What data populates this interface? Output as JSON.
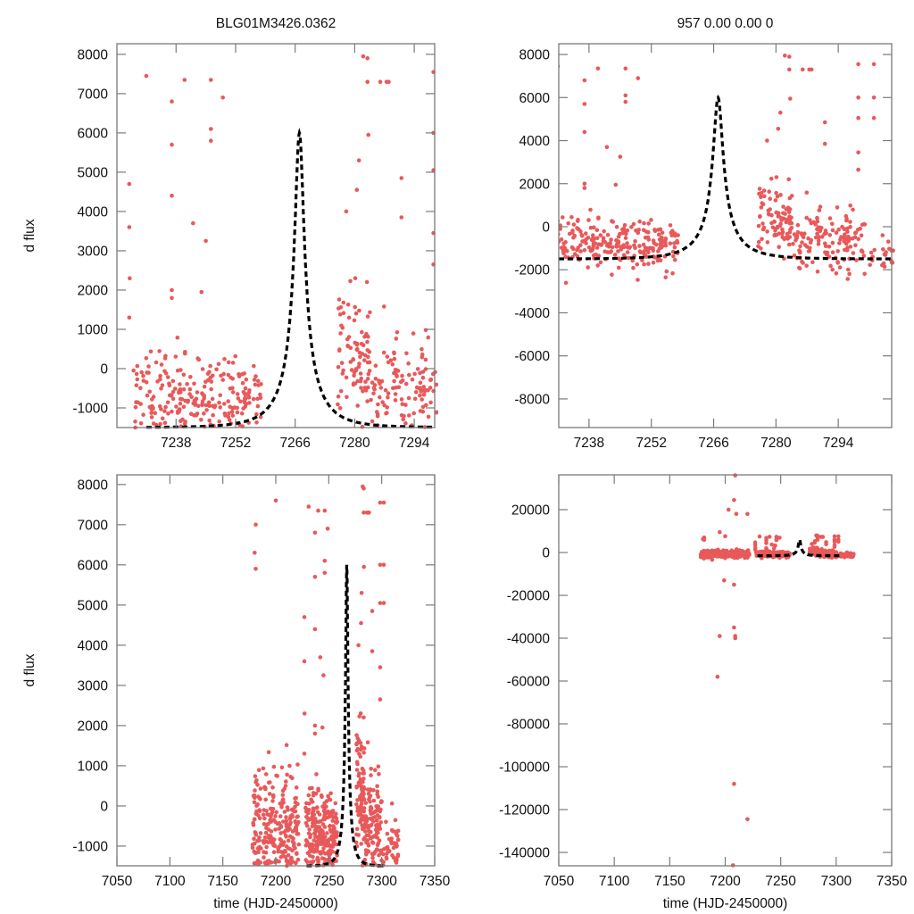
{
  "figure": {
    "colors": {
      "points": "#e8595a",
      "model": "#000000",
      "frame": "#7a7a7a"
    }
  },
  "chart_data": [
    {
      "id": "top-left",
      "type": "scatter",
      "title": "BLG01M3426.0362",
      "xlabel": "",
      "ylabel": "d flux",
      "xlim": [
        7224.1,
        7298.8
      ],
      "ylim": [
        -1500,
        8270
      ],
      "xticks": [
        7238,
        7252,
        7266,
        7280,
        7294
      ],
      "yticks": [
        -1000,
        0,
        1000,
        2000,
        3000,
        4000,
        5000,
        6000,
        7000,
        8000
      ],
      "grid": false,
      "series": [
        {
          "name": "observations",
          "style": "points"
        },
        {
          "name": "model",
          "style": "dashed-line"
        }
      ]
    },
    {
      "id": "top-right",
      "type": "scatter",
      "title": "957  0.00  0.00  0",
      "xlabel": "",
      "ylabel": "",
      "xlim": [
        7231.2,
        7306.0
      ],
      "ylim": [
        -9330,
        8500
      ],
      "xticks": [
        7238,
        7252,
        7266,
        7280,
        7294
      ],
      "yticks": [
        -8000,
        -6000,
        -4000,
        -2000,
        0,
        2000,
        4000,
        6000,
        8000
      ],
      "grid": false,
      "series": [
        {
          "name": "observations",
          "style": "points"
        },
        {
          "name": "model",
          "style": "dashed-line"
        }
      ]
    },
    {
      "id": "bottom-left",
      "type": "scatter",
      "title": "",
      "xlabel": "time (HJD-2450000)",
      "ylabel": "d flux",
      "xlim": [
        7050,
        7350
      ],
      "ylim": [
        -1490,
        8240
      ],
      "xticks": [
        7050,
        7100,
        7150,
        7200,
        7250,
        7300,
        7350
      ],
      "yticks": [
        -1000,
        0,
        1000,
        2000,
        3000,
        4000,
        5000,
        6000,
        7000,
        8000
      ],
      "grid": false,
      "series": [
        {
          "name": "observations",
          "style": "points"
        },
        {
          "name": "model",
          "style": "dashed-line"
        }
      ]
    },
    {
      "id": "bottom-right",
      "type": "scatter",
      "title": "",
      "xlabel": "time (HJD-2450000)",
      "ylabel": "",
      "xlim": [
        7050,
        7350
      ],
      "ylim": [
        -146250,
        36250
      ],
      "xticks": [
        7050,
        7100,
        7150,
        7200,
        7250,
        7300,
        7350
      ],
      "yticks": [
        -140000,
        -120000,
        -100000,
        -80000,
        -60000,
        -40000,
        -20000,
        0,
        20000
      ],
      "grid": false,
      "series": [
        {
          "name": "observations",
          "style": "points"
        },
        {
          "name": "model",
          "style": "dashed-line"
        }
      ]
    }
  ],
  "model": {
    "t0": 7267.0,
    "peak": 6000,
    "baseline": -1500,
    "tE": 9.0,
    "u0": 0.12,
    "t_range": [
      7231,
      7308
    ]
  },
  "observations": {
    "seasons_dense": [
      {
        "t": [
          7178,
          7186
        ],
        "y_center": -700,
        "spread": 1600,
        "n": 70
      },
      {
        "t": [
          7188,
          7212
        ],
        "y_center": -700,
        "spread": 1400,
        "n": 180
      },
      {
        "t": [
          7213,
          7222
        ],
        "y_center": -800,
        "spread": 1200,
        "n": 60
      },
      {
        "t": [
          7228,
          7236
        ],
        "y_center": -700,
        "spread": 1200,
        "n": 60
      },
      {
        "t": [
          7236,
          7258
        ],
        "y_center": -900,
        "spread": 1000,
        "n": 200
      },
      {
        "t": [
          7276,
          7284
        ],
        "y_center": 300,
        "spread": 1400,
        "n": 90
      },
      {
        "t": [
          7284,
          7300
        ],
        "y_center": -700,
        "spread": 1300,
        "n": 140
      },
      {
        "t": [
          7300,
          7316
        ],
        "y_center": -1200,
        "spread": 900,
        "n": 60
      }
    ],
    "outliers": [
      [
        7227.0,
        4700
      ],
      [
        7227.0,
        3600
      ],
      [
        7227.1,
        2300
      ],
      [
        7227.0,
        1300
      ],
      [
        7237.0,
        6800
      ],
      [
        7237.0,
        5700
      ],
      [
        7237.0,
        4400
      ],
      [
        7237.0,
        2000
      ],
      [
        7237.0,
        1800
      ],
      [
        7246.2,
        7350
      ],
      [
        7246.2,
        6100
      ],
      [
        7246.2,
        5800
      ],
      [
        7245.0,
        3250
      ],
      [
        7244.0,
        1950
      ],
      [
        7242.0,
        3700
      ],
      [
        7278.0,
        4000
      ],
      [
        7282.0,
        7950
      ],
      [
        7283.0,
        7300
      ],
      [
        7283.2,
        5950
      ],
      [
        7287.5,
        7300
      ],
      [
        7291.0,
        4850
      ],
      [
        7291.0,
        3850
      ],
      [
        7298.5,
        7550
      ],
      [
        7298.5,
        6000
      ],
      [
        7298.5,
        5050
      ],
      [
        7298.5,
        3450
      ],
      [
        7298.5,
        2650
      ],
      [
        7281.0,
        5300
      ],
      [
        7280.5,
        4550
      ],
      [
        7181,
        7000
      ],
      [
        7180,
        6300
      ],
      [
        7181,
        5900
      ],
      [
        7200,
        7600
      ],
      [
        7231,
        7450
      ],
      [
        7240,
        7350
      ],
      [
        7249,
        6900
      ],
      [
        7283,
        7900
      ],
      [
        7286,
        7300
      ],
      [
        7288,
        7300
      ],
      [
        7302,
        7550
      ],
      [
        7302,
        6000
      ],
      [
        7302,
        5050
      ],
      [
        7209,
        36000
      ],
      [
        7208,
        24500
      ],
      [
        7203,
        20000
      ],
      [
        7210,
        18000
      ],
      [
        7220,
        18000
      ],
      [
        7195,
        9500
      ],
      [
        7209,
        -39000
      ],
      [
        7209,
        -40000
      ],
      [
        7208,
        -35000
      ],
      [
        7195,
        -39000
      ],
      [
        7193,
        -58000
      ],
      [
        7208,
        -108000
      ],
      [
        7220,
        -124500
      ],
      [
        7207,
        -146000
      ],
      [
        7199,
        -13000
      ],
      [
        7208,
        -15000
      ]
    ]
  }
}
